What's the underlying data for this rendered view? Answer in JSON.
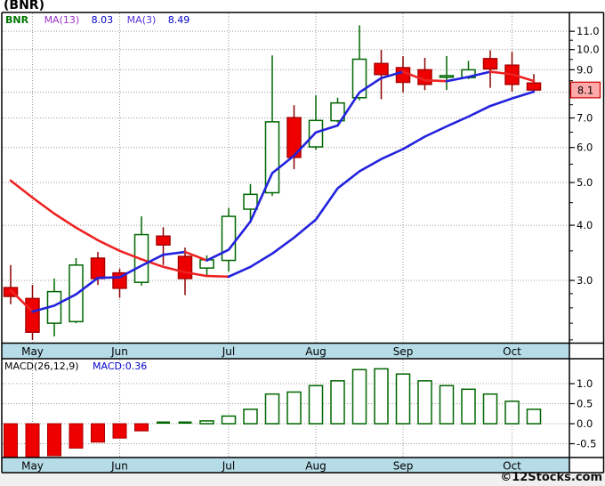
{
  "title": "(BNR)",
  "legend": {
    "symbol": "BNR",
    "ma13_label": "MA(13)",
    "ma13_value": "8.03",
    "ma3_label": "MA(3)",
    "ma3_value": "8.49"
  },
  "macd_header": {
    "label": "MACD(26,12,9)",
    "value": "MACD:0.36"
  },
  "footer_credit": "©12Stocks.com",
  "colors": {
    "up": "#006600",
    "down_fill": "#EE0000",
    "down_stroke": "#AA0000",
    "wick_down": "#8B0000",
    "ma_rising": "#2222DD",
    "ma_falling": "#EE2222",
    "band": "#B6DCE8",
    "grid": "#999999",
    "axis": "#000000",
    "marker_fill": "#FFAAAA",
    "marker_border": "#CC0000",
    "legend_symbol": "#007700",
    "legend_ma13": "#9933CC",
    "legend_ma3": "#5533DD",
    "legend_value": "#0000CC",
    "macd_value": "#0000CC",
    "footer_bg": "#F0F0F0"
  },
  "chart_data": [
    {
      "type": "candlestick",
      "panel": "price",
      "scale": "log",
      "period": "weekly",
      "months": [
        {
          "label": "May",
          "week": 1
        },
        {
          "label": "Jun",
          "week": 5
        },
        {
          "label": "Jul",
          "week": 10
        },
        {
          "label": "Aug",
          "week": 14
        },
        {
          "label": "Sep",
          "week": 18
        },
        {
          "label": "Oct",
          "week": 23
        }
      ],
      "y_ticks": [
        11.0,
        10.0,
        9.0,
        8.0,
        7.0,
        6.0,
        5.0,
        4.0,
        3.0
      ],
      "y_minor_ticks": [
        10.5,
        9.5,
        8.5,
        7.5,
        6.5,
        5.5,
        4.5,
        3.5,
        2.8,
        2.6,
        2.4,
        2.2
      ],
      "last_price_marker": "8.1",
      "weeks_ohlc": [
        [
          2.89,
          3.25,
          2.65,
          2.76
        ],
        [
          2.73,
          2.93,
          2.2,
          2.29
        ],
        [
          2.4,
          3.03,
          2.24,
          2.83
        ],
        [
          2.42,
          3.37,
          2.4,
          3.25
        ],
        [
          3.37,
          3.48,
          2.93,
          3.03
        ],
        [
          3.12,
          3.19,
          2.74,
          2.88
        ],
        [
          2.97,
          4.19,
          2.92,
          3.81
        ],
        [
          3.78,
          3.96,
          3.25,
          3.61
        ],
        [
          3.4,
          3.56,
          2.78,
          3.03
        ],
        [
          3.2,
          3.42,
          3.07,
          3.34
        ],
        [
          3.33,
          4.38,
          3.14,
          4.19
        ],
        [
          4.35,
          4.96,
          4.06,
          4.7
        ],
        [
          4.74,
          9.7,
          4.66,
          6.86
        ],
        [
          7.01,
          7.48,
          5.36,
          5.7
        ],
        [
          6.02,
          7.88,
          5.93,
          6.91
        ],
        [
          6.9,
          7.78,
          6.84,
          7.57
        ],
        [
          7.78,
          11.35,
          7.68,
          9.51
        ],
        [
          9.3,
          9.98,
          7.72,
          8.78
        ],
        [
          9.1,
          9.66,
          8.0,
          8.43
        ],
        [
          9.0,
          9.58,
          8.09,
          8.34
        ],
        [
          8.7,
          9.67,
          8.1,
          8.73
        ],
        [
          8.64,
          9.43,
          8.57,
          9.0
        ],
        [
          9.54,
          9.96,
          8.19,
          9.04
        ],
        [
          9.22,
          9.88,
          8.03,
          8.34
        ],
        [
          8.4,
          8.8,
          8.0,
          8.1
        ]
      ],
      "overlays": [
        {
          "name": "MA(13)",
          "period": 13,
          "last_value": 8.03,
          "values": [
            5.05,
            4.62,
            4.25,
            3.95,
            3.7,
            3.5,
            3.35,
            3.22,
            3.13,
            3.07,
            3.06,
            3.22,
            3.45,
            3.75,
            4.12,
            4.85,
            5.3,
            5.65,
            5.95,
            6.35,
            6.7,
            7.05,
            7.45,
            7.75,
            8.03
          ]
        },
        {
          "name": "MA(3)",
          "period": 3,
          "last_value": 8.49,
          "values": [
            2.85,
            2.55,
            2.63,
            2.79,
            3.04,
            3.05,
            3.24,
            3.43,
            3.48,
            3.33,
            3.52,
            4.08,
            5.25,
            5.75,
            6.49,
            6.73,
            8.0,
            8.62,
            8.91,
            8.52,
            8.48,
            8.67,
            8.91,
            8.79,
            8.49
          ]
        }
      ]
    },
    {
      "type": "bar",
      "panel": "macd",
      "name": "MACD(26,12,9)",
      "y_ticks": [
        1.0,
        0.5,
        0.0,
        -0.5
      ],
      "last_value": 0.36,
      "values": [
        -0.88,
        -0.9,
        -0.8,
        -0.61,
        -0.46,
        -0.36,
        -0.18,
        -0.04,
        -0.03,
        0.07,
        0.19,
        0.36,
        0.74,
        0.79,
        0.95,
        1.07,
        1.35,
        1.37,
        1.24,
        1.07,
        0.95,
        0.86,
        0.74,
        0.56,
        0.36
      ]
    }
  ]
}
